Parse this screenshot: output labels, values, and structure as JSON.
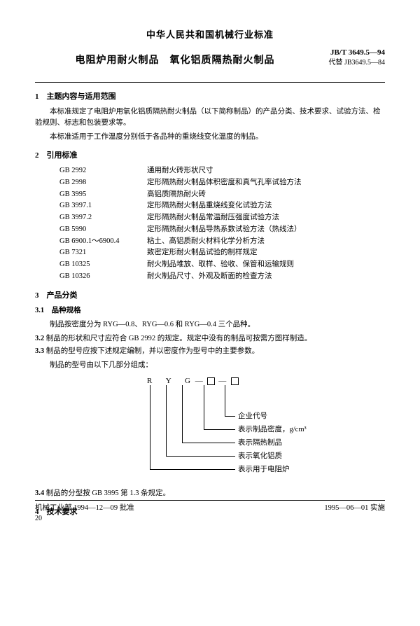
{
  "header": "中华人民共和国机械行业标准",
  "doc_code": "JB/T 3649.5—94",
  "replaces": "代替 JB3649.5—84",
  "title": "电阻炉用耐火制品　氧化铝质隔热耐火制品",
  "s1": {
    "head": "1　主题内容与适用范围",
    "p1": "本标准规定了电阻炉用氧化铝质隔热耐火制品（以下简称制品）的产品分类、技术要求、试验方法、检验规则、标志和包装要求等。",
    "p2": "本标准适用于工作温度分别低于各品种的重烧线变化温度的制品。"
  },
  "s2": {
    "head": "2　引用标准",
    "refs": [
      [
        "GB 2992",
        "通用耐火砖形状尺寸"
      ],
      [
        "GB 2998",
        "定形隔热耐火制品体积密度和真气孔率试验方法"
      ],
      [
        "GB 3995",
        "高铝质隔热耐火砖"
      ],
      [
        "GB 3997.1",
        "定形隔热耐火制品重烧线变化试验方法"
      ],
      [
        "GB 3997.2",
        "定形隔热耐火制品常温耐压强度试验方法"
      ],
      [
        "GB 5990",
        "定形隔热耐火制品导热系数试验方法（热线法）"
      ],
      [
        "GB 6900.1～6900.4",
        "粘土、高铝质耐火材料化学分析方法"
      ],
      [
        "GB 7321",
        "致密定形耐火制品试验的制样规定"
      ],
      [
        "GB 10325",
        "耐火制品堆放、取样、验收、保管和运输规则"
      ],
      [
        "GB 10326",
        "耐火制品尺寸、外观及断面的检查方法"
      ]
    ]
  },
  "s3": {
    "head": "3　产品分类",
    "s31_head": "3.1　品种规格",
    "s31_p1": "制品按密度分为 RYG—0.8、RYG—0.6 和 RYG—0.4 三个品种。",
    "s32": "制品的形状和尺寸应符合 GB 2992 的规定。规定中没有的制品可按需方图样制造。",
    "s32_num": "3.2",
    "s33": "制品的型号应按下述规定编制，并以密度作为型号中的主要参数。",
    "s33_num": "3.3",
    "s33_p2": "制品的型号由以下几部分组成：",
    "diagram": {
      "code": "R　Y　G — □ — □",
      "l1": "企业代号",
      "l2": "表示制品密度，g/cm³",
      "l3": "表示隔热制品",
      "l4": "表示氧化铝质",
      "l5": "表示用于电阻炉"
    },
    "s34_num": "3.4",
    "s34": "制品的分型按 GB 3995 第 1.3 条规定。"
  },
  "s4": {
    "head": "4　技术要求"
  },
  "footer": {
    "left": "机械工业部 1994—12—09 批准",
    "right": "1995—06—01 实施",
    "page": "20"
  }
}
